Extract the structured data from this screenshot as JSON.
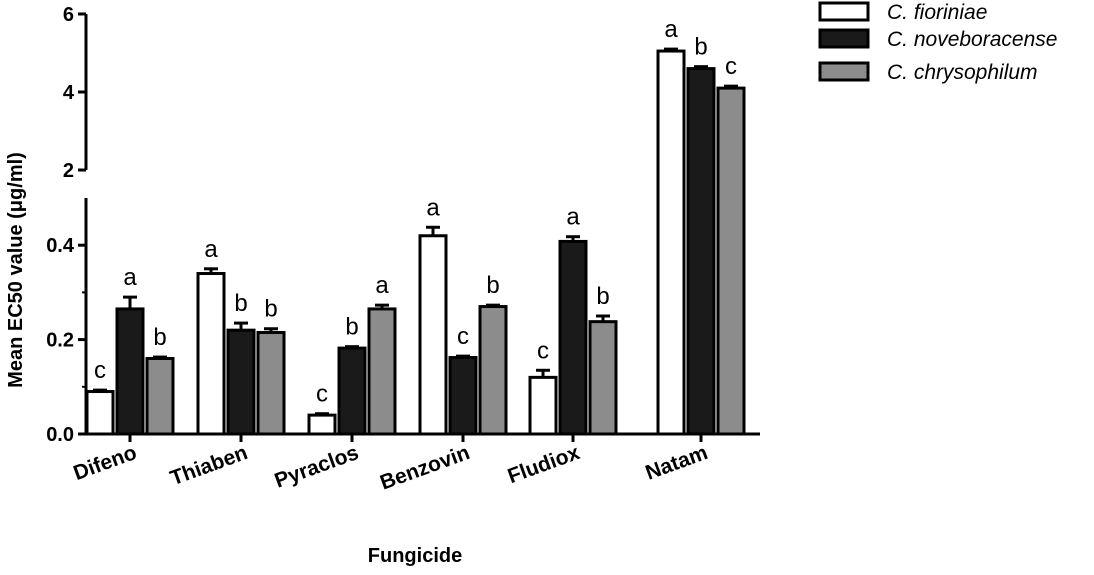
{
  "chart_data": {
    "type": "bar",
    "title": "",
    "xlabel": "Fungicide",
    "ylabel": "Mean EC50 value (μg/ml)",
    "categories": [
      "Difeno",
      "Thiaben",
      "Pyraclos",
      "Benzovin",
      "Fludiox",
      "Natam"
    ],
    "y_axis_break": {
      "lower_range": [
        0,
        0.5
      ],
      "upper_range": [
        2,
        6
      ]
    },
    "lower_ticks": [
      "0.0",
      "0.2",
      "0.4"
    ],
    "upper_ticks": [
      "2",
      "4",
      "6"
    ],
    "legend_position": "top-right",
    "grid": false,
    "series": [
      {
        "name": "C. fioriniae",
        "color": "#ffffff",
        "values": [
          0.09,
          0.34,
          0.04,
          0.42,
          0.12,
          5.05
        ],
        "errors": [
          0.003,
          0.01,
          0.003,
          0.018,
          0.015,
          0.05
        ],
        "letters": [
          "c",
          "a",
          "c",
          "a",
          "c",
          "a"
        ]
      },
      {
        "name": "C. noveboracense",
        "color": "#1a1a1a",
        "values": [
          0.265,
          0.22,
          0.182,
          0.162,
          0.408,
          4.6
        ],
        "errors": [
          0.025,
          0.015,
          0.003,
          0.003,
          0.01,
          0.05
        ],
        "letters": [
          "a",
          "b",
          "b",
          "c",
          "a",
          "b"
        ]
      },
      {
        "name": "C. chrysophilum",
        "color": "#8c8c8c",
        "values": [
          0.16,
          0.215,
          0.265,
          0.27,
          0.238,
          4.1
        ],
        "errors": [
          0.003,
          0.008,
          0.008,
          0.003,
          0.012,
          0.05
        ],
        "letters": [
          "b",
          "b",
          "a",
          "b",
          "b",
          "c"
        ]
      }
    ]
  }
}
